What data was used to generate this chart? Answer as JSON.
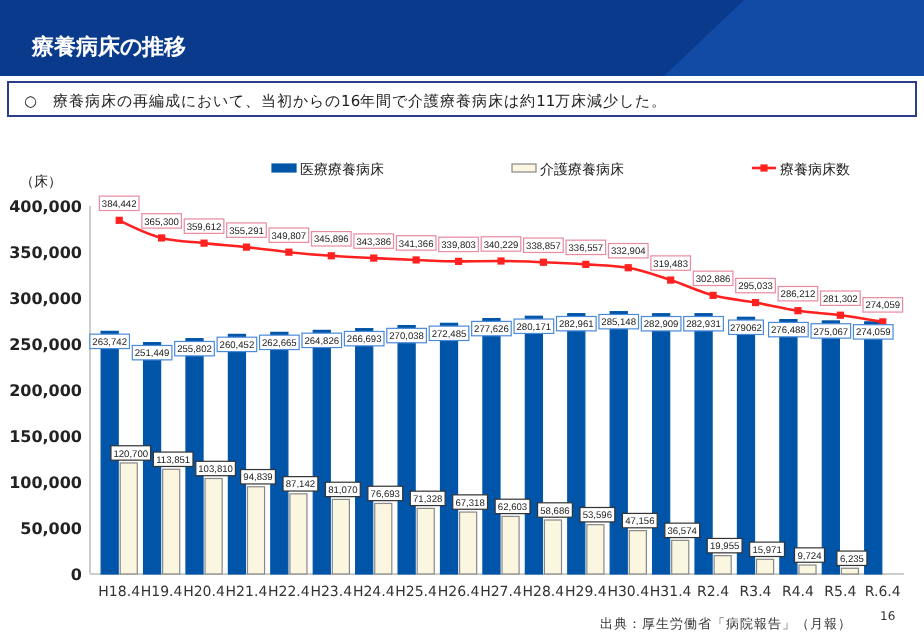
{
  "chart_data": {
    "type": "bar",
    "title": "療養病床の推移",
    "subtitle": "○　療養病床の再編成において、当初からの16年間で介護療養病床は約11万床減少した。",
    "ylabel": "（床）",
    "categories": [
      "H18.4",
      "H19.4",
      "H20.4",
      "H21.4",
      "H22.4",
      "H23.4",
      "H24.4",
      "H25.4",
      "H26.4",
      "H27.4",
      "H28.4",
      "H29.4",
      "H30.4",
      "H31.4",
      "R2.4",
      "R3.4",
      "R4.4",
      "R5.4",
      "R.6.4"
    ],
    "series": [
      {
        "name": "医療療養病床",
        "color": "#0055a8",
        "values": [
          263742,
          251449,
          255802,
          260452,
          262665,
          264826,
          266693,
          270038,
          272485,
          277626,
          280171,
          282961,
          285148,
          282909,
          282931,
          279062,
          276488,
          275067,
          274059
        ],
        "value_labels": [
          "263,742",
          "251,449",
          "255,802",
          "260,452",
          "262,665",
          "264,826",
          "266,693",
          "270,038",
          "272,485",
          "277,626",
          "280,171",
          "282,961",
          "285,148",
          "282,909",
          "282,931",
          "279062",
          "276,488",
          "275,067",
          "274,059"
        ]
      },
      {
        "name": "介護療養病床",
        "color": "#fbf6e0",
        "values": [
          120700,
          113851,
          103810,
          94839,
          87142,
          81070,
          76693,
          71328,
          67318,
          62603,
          58686,
          53596,
          47156,
          36574,
          19955,
          15971,
          9724,
          6235,
          null
        ],
        "value_labels": [
          "120,700",
          "113,851",
          "103,810",
          "94,839",
          "87,142",
          "81,070",
          "76,693",
          "71,328",
          "67,318",
          "62,603",
          "58,686",
          "53,596",
          "47,156",
          "36,574",
          "19,955",
          "15,971",
          "9,724",
          "6,235",
          null
        ]
      },
      {
        "name": "療養病床数",
        "type": "line",
        "color": "#ff2020",
        "values": [
          384442,
          365300,
          359612,
          355291,
          349807,
          345896,
          343386,
          341366,
          339803,
          340229,
          338857,
          336557,
          332904,
          319483,
          302886,
          295033,
          286212,
          281302,
          274059
        ],
        "value_labels": [
          "384,442",
          "365,300",
          "359,612",
          "355,291",
          "349,807",
          "345,896",
          "343,386",
          "341,366",
          "339,803",
          "340,229",
          "338,857",
          "336,557",
          "332,904",
          "319,483",
          "302,886",
          "295,033",
          "286,212",
          "281,302",
          "274,059"
        ]
      }
    ],
    "ylim": [
      0,
      400000
    ],
    "yticks": [
      {
        "value": 0,
        "label": "0"
      },
      {
        "value": 50000,
        "label": "50,000"
      },
      {
        "value": 100000,
        "label": "100,000"
      },
      {
        "value": 150000,
        "label": "150,000"
      },
      {
        "value": 200000,
        "label": "200,000"
      },
      {
        "value": 250000,
        "label": "250,000"
      },
      {
        "value": 300000,
        "label": "300,000"
      },
      {
        "value": 350000,
        "label": "350,000"
      },
      {
        "value": 400000,
        "label": "400,000"
      }
    ],
    "grid": false,
    "legend": "top",
    "marker": "square",
    "line_style": "solid",
    "annotations": [
      "出典：厚生労働省「病院報告」（月報）",
      "16"
    ]
  }
}
